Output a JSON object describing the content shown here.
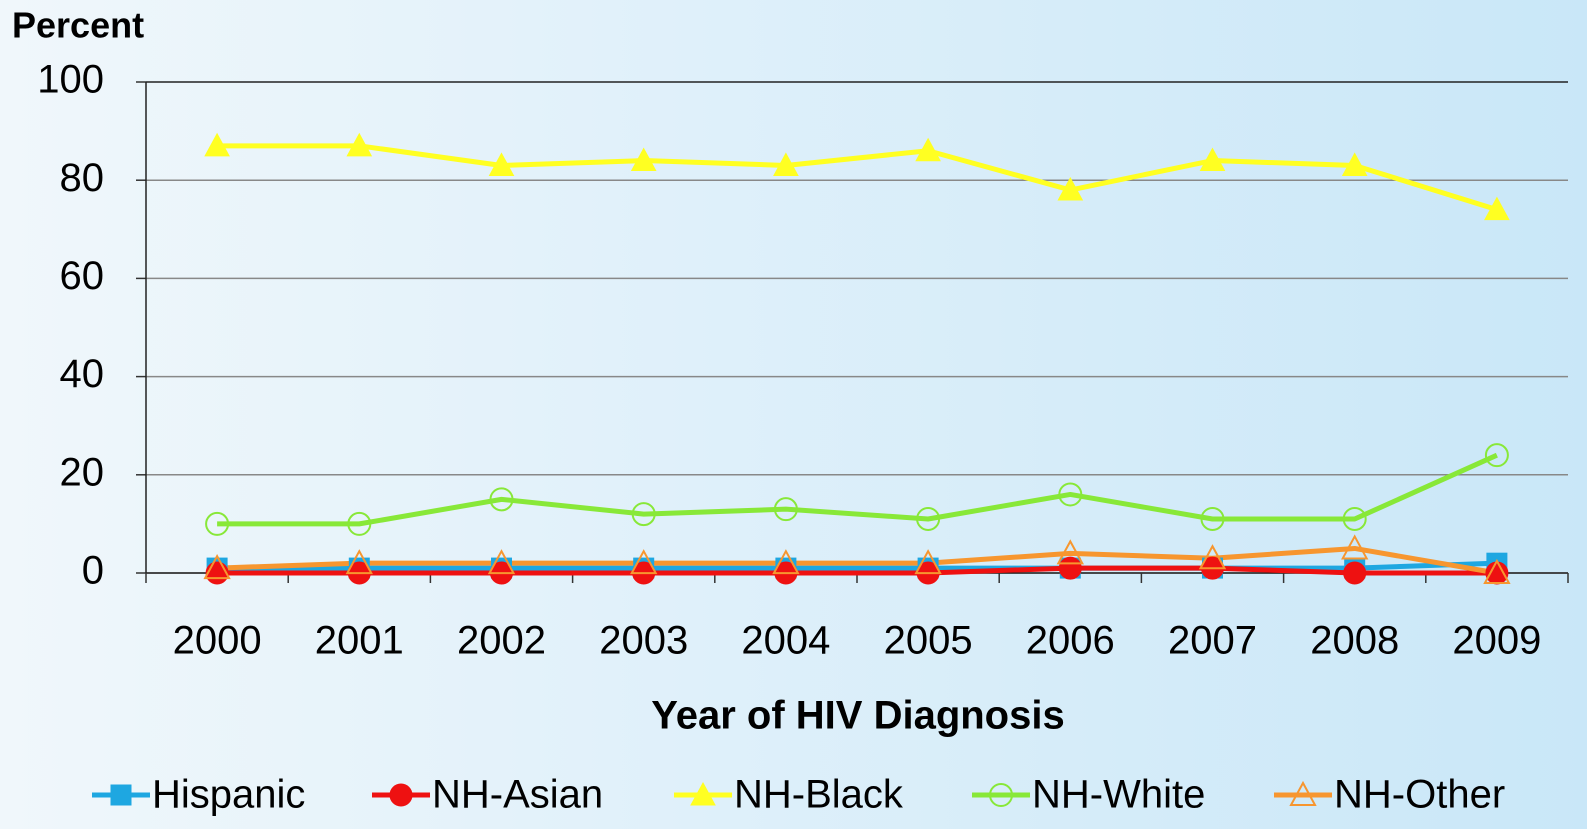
{
  "chart_data": {
    "type": "line",
    "y_axis_label": "Percent",
    "x_axis_label": "Year of HIV Diagnosis",
    "categories": [
      "2000",
      "2001",
      "2002",
      "2003",
      "2004",
      "2005",
      "2006",
      "2007",
      "2008",
      "2009"
    ],
    "series": [
      {
        "name": "Hispanic",
        "color": "#1ea7e1",
        "marker": "square",
        "filled": true,
        "values": [
          1,
          1,
          1,
          1,
          1,
          1,
          1,
          1,
          1,
          2
        ]
      },
      {
        "name": "NH-Asian",
        "color": "#ee1111",
        "marker": "circle",
        "filled": true,
        "values": [
          0,
          0,
          0,
          0,
          0,
          0,
          1,
          1,
          0,
          0
        ]
      },
      {
        "name": "NH-Black",
        "color": "#ffff22",
        "marker": "triangle",
        "filled": true,
        "values": [
          87,
          87,
          83,
          84,
          83,
          86,
          78,
          84,
          83,
          74
        ]
      },
      {
        "name": "NH-White",
        "color": "#88e838",
        "marker": "circle",
        "filled": false,
        "values": [
          10,
          10,
          15,
          12,
          13,
          11,
          16,
          11,
          11,
          24
        ]
      },
      {
        "name": "NH-Other",
        "color": "#f7962f",
        "marker": "triangle",
        "filled": false,
        "values": [
          1,
          2,
          2,
          2,
          2,
          2,
          4,
          3,
          5,
          0
        ]
      }
    ],
    "ylim": [
      0,
      100
    ],
    "yticks": [
      0,
      20,
      40,
      60,
      80,
      100
    ],
    "grid": true
  }
}
